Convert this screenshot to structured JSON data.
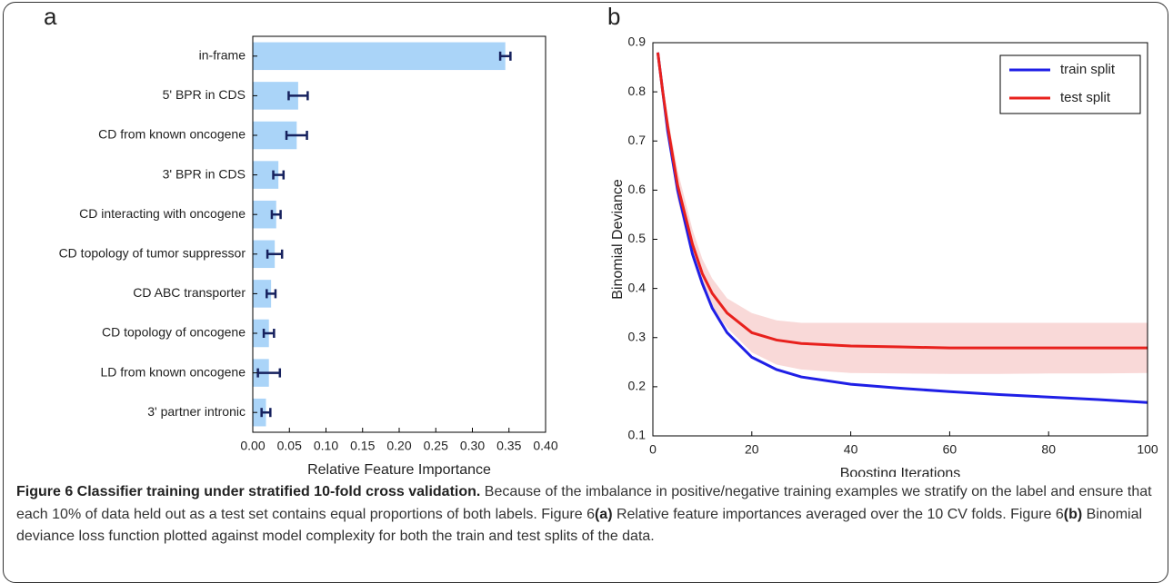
{
  "chart_data": [
    {
      "type": "hbar",
      "panel": "a",
      "xlabel": "Relative Feature Importance",
      "categories": [
        "in-frame",
        "5' BPR in CDS",
        "CD from known oncogene",
        "3' BPR in CDS",
        "CD interacting with oncogene",
        "CD topology of tumor suppressor",
        "CD ABC transporter",
        "CD topology of oncogene",
        "LD from known oncogene",
        "3' partner intronic"
      ],
      "values": [
        0.345,
        0.062,
        0.06,
        0.035,
        0.032,
        0.03,
        0.025,
        0.022,
        0.022,
        0.018
      ],
      "errors": [
        0.007,
        0.013,
        0.014,
        0.007,
        0.006,
        0.01,
        0.006,
        0.007,
        0.015,
        0.006
      ],
      "color": "#aad4f8",
      "error_color": "#16215e",
      "xlim": [
        0,
        0.4
      ],
      "xticks": [
        {
          "value": 0,
          "label": "0.00"
        },
        {
          "value": 0.05,
          "label": "0.05"
        },
        {
          "value": 0.1,
          "label": "0.10"
        },
        {
          "value": 0.15,
          "label": "0.15"
        },
        {
          "value": 0.2,
          "label": "0.20"
        },
        {
          "value": 0.25,
          "label": "0.25"
        },
        {
          "value": 0.3,
          "label": "0.30"
        },
        {
          "value": 0.35,
          "label": "0.35"
        },
        {
          "value": 0.4,
          "label": "0.40"
        }
      ]
    },
    {
      "type": "line",
      "panel": "b",
      "xlabel": "Boosting Iterations",
      "ylabel": "Binomial Deviance",
      "x": [
        1,
        2,
        3,
        5,
        8,
        10,
        12,
        15,
        20,
        25,
        30,
        40,
        50,
        60,
        70,
        80,
        90,
        100
      ],
      "series": [
        {
          "name": "train split",
          "color": "#1f1fe6",
          "values": [
            0.88,
            0.8,
            0.72,
            0.6,
            0.47,
            0.41,
            0.36,
            0.31,
            0.26,
            0.235,
            0.22,
            0.205,
            0.197,
            0.19,
            0.184,
            0.179,
            0.174,
            0.168
          ]
        },
        {
          "name": "test split",
          "color": "#e8211d",
          "band_color": "#f7c9c8",
          "values": [
            0.88,
            0.8,
            0.73,
            0.61,
            0.49,
            0.43,
            0.39,
            0.35,
            0.31,
            0.295,
            0.288,
            0.283,
            0.281,
            0.279,
            0.279,
            0.279,
            0.279,
            0.279
          ],
          "lower": [
            0.88,
            0.79,
            0.71,
            0.58,
            0.46,
            0.4,
            0.36,
            0.32,
            0.27,
            0.245,
            0.235,
            0.228,
            0.227,
            0.226,
            0.226,
            0.227,
            0.227,
            0.228
          ],
          "upper": [
            0.88,
            0.81,
            0.75,
            0.64,
            0.52,
            0.46,
            0.42,
            0.38,
            0.35,
            0.335,
            0.33,
            0.33,
            0.33,
            0.33,
            0.33,
            0.33,
            0.33,
            0.33
          ]
        }
      ],
      "xlim": [
        0,
        100
      ],
      "xticks": [
        0,
        20,
        40,
        60,
        80,
        100
      ],
      "ylim": [
        0.1,
        0.9
      ],
      "yticks": [
        0.1,
        0.2,
        0.3,
        0.4,
        0.5,
        0.6,
        0.7,
        0.8,
        0.9
      ],
      "legend": "upper right"
    }
  ],
  "caption": {
    "title": "Figure 6 Classifier training under stratified 10-fold cross validation.",
    "segments": [
      {
        "text": " Because of the imbalance in positive/negative training examples we stratify on the label and ensure that each 10% of data held out as a test set contains equal proportions of both labels. Figure 6",
        "bold": false
      },
      {
        "text": "(a)",
        "bold": true
      },
      {
        "text": " Relative feature importances averaged over the 10 CV folds. Figure 6",
        "bold": false
      },
      {
        "text": "(b)",
        "bold": true
      },
      {
        "text": " Binomial deviance loss function plotted against model complexity for both the train and test splits of the data.",
        "bold": false
      }
    ]
  }
}
